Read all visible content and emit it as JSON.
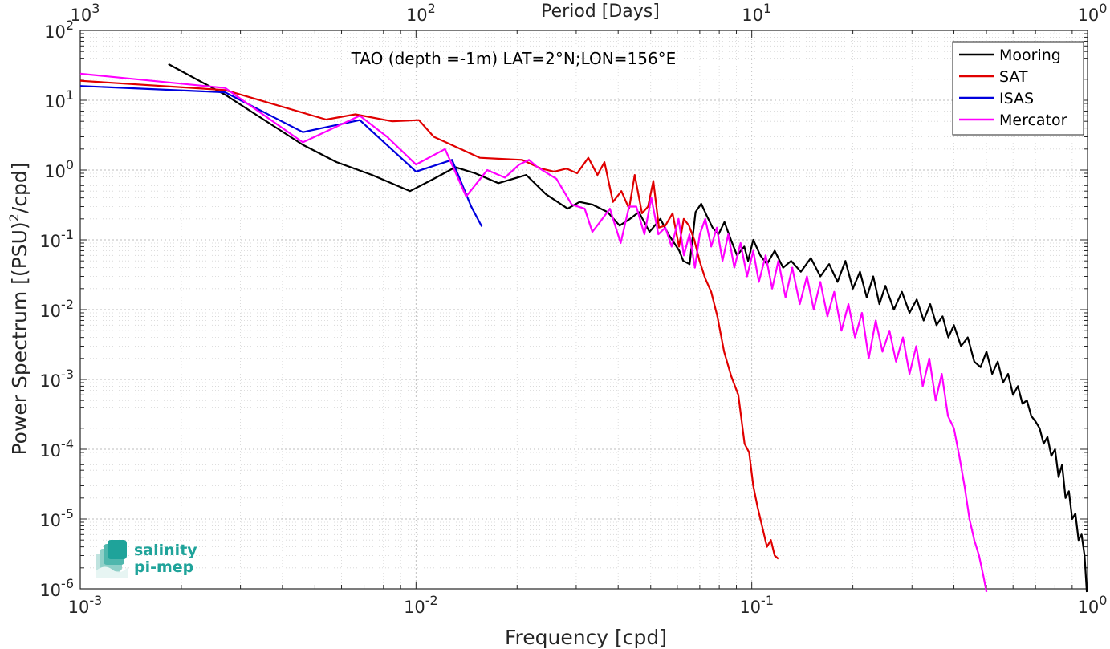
{
  "chart_data": {
    "type": "line",
    "title": "TAO (depth =-1m) LAT=2°N;LON=156°E",
    "xlabel": "Frequency [cpd]",
    "ylabel": "Power Spectrum [(PSU)²/cpd]",
    "top_xlabel": "Period [Days]",
    "x_scale": "log",
    "y_scale": "log",
    "xlim": [
      0.001,
      1
    ],
    "ylim": [
      1e-06,
      100
    ],
    "grid": true,
    "legend_position": "top-right",
    "x_ticks": [
      {
        "value": 0.001,
        "base": "10",
        "exp": "-3"
      },
      {
        "value": 0.01,
        "base": "10",
        "exp": "-2"
      },
      {
        "value": 0.1,
        "base": "10",
        "exp": "-1"
      },
      {
        "value": 1,
        "base": "10",
        "exp": "0"
      }
    ],
    "top_ticks": [
      {
        "value": 0.001,
        "base": "10",
        "exp": "3"
      },
      {
        "value": 0.01,
        "base": "10",
        "exp": "2"
      },
      {
        "value": 0.1,
        "base": "10",
        "exp": "1"
      },
      {
        "value": 1,
        "base": "10",
        "exp": "0"
      }
    ],
    "y_ticks": [
      {
        "value": 100,
        "base": "10",
        "exp": "2"
      },
      {
        "value": 10,
        "base": "10",
        "exp": "1"
      },
      {
        "value": 1,
        "base": "10",
        "exp": "0"
      },
      {
        "value": 0.1,
        "base": "10",
        "exp": "-1"
      },
      {
        "value": 0.01,
        "base": "10",
        "exp": "-2"
      },
      {
        "value": 0.001,
        "base": "10",
        "exp": "-3"
      },
      {
        "value": 0.0001,
        "base": "10",
        "exp": "-4"
      },
      {
        "value": 1e-05,
        "base": "10",
        "exp": "-5"
      },
      {
        "value": 1e-06,
        "base": "10",
        "exp": "-6"
      }
    ],
    "series": [
      {
        "name": "Mooring",
        "color": "#000000",
        "x": [
          0.00183,
          0.0027,
          0.0046,
          0.0058,
          0.0074,
          0.0096,
          0.0113,
          0.0131,
          0.015,
          0.0176,
          0.0213,
          0.0244,
          0.0283,
          0.0307,
          0.0336,
          0.0372,
          0.0404,
          0.0434,
          0.0461,
          0.0496,
          0.0534,
          0.0565,
          0.0608,
          0.0625,
          0.0653,
          0.068,
          0.0707,
          0.0735,
          0.0764,
          0.0796,
          0.0829,
          0.0867,
          0.0904,
          0.095,
          0.0975,
          0.101,
          0.106,
          0.111,
          0.117,
          0.124,
          0.131,
          0.14,
          0.15,
          0.16,
          0.17,
          0.18,
          0.19,
          0.2,
          0.21,
          0.22,
          0.23,
          0.24,
          0.25,
          0.265,
          0.28,
          0.295,
          0.31,
          0.325,
          0.34,
          0.355,
          0.37,
          0.385,
          0.4,
          0.42,
          0.44,
          0.46,
          0.48,
          0.5,
          0.52,
          0.54,
          0.56,
          0.58,
          0.6,
          0.62,
          0.64,
          0.66,
          0.68,
          0.7,
          0.72,
          0.74,
          0.76,
          0.78,
          0.8,
          0.82,
          0.84,
          0.86,
          0.88,
          0.9,
          0.92,
          0.94,
          0.96,
          0.98,
          0.995
        ],
        "y": [
          33,
          12,
          2.3,
          1.3,
          0.85,
          0.5,
          0.75,
          1.1,
          0.9,
          0.65,
          0.85,
          0.45,
          0.28,
          0.35,
          0.32,
          0.25,
          0.16,
          0.2,
          0.25,
          0.13,
          0.2,
          0.12,
          0.07,
          0.05,
          0.045,
          0.25,
          0.33,
          0.22,
          0.15,
          0.12,
          0.18,
          0.1,
          0.06,
          0.08,
          0.05,
          0.1,
          0.06,
          0.045,
          0.07,
          0.04,
          0.05,
          0.035,
          0.055,
          0.03,
          0.045,
          0.025,
          0.05,
          0.02,
          0.035,
          0.015,
          0.03,
          0.012,
          0.022,
          0.01,
          0.018,
          0.009,
          0.014,
          0.007,
          0.012,
          0.006,
          0.008,
          0.004,
          0.006,
          0.003,
          0.004,
          0.0018,
          0.0015,
          0.0025,
          0.0012,
          0.0018,
          0.0009,
          0.0012,
          0.0006,
          0.0008,
          0.00045,
          0.0005,
          0.0003,
          0.00025,
          0.0002,
          0.00012,
          0.00015,
          8e-05,
          0.0001,
          4e-05,
          6e-05,
          2e-05,
          2.5e-05,
          1e-05,
          1.2e-05,
          5e-06,
          6e-06,
          3e-06,
          9e-07
        ]
      },
      {
        "name": "SAT",
        "color": "#e00000",
        "x": [
          0.001,
          0.0027,
          0.0054,
          0.0066,
          0.0085,
          0.0102,
          0.0113,
          0.0133,
          0.0155,
          0.0178,
          0.0207,
          0.0236,
          0.0258,
          0.0281,
          0.0302,
          0.0326,
          0.0347,
          0.0364,
          0.0386,
          0.0409,
          0.0431,
          0.0448,
          0.0471,
          0.0491,
          0.0509,
          0.0529,
          0.0553,
          0.0581,
          0.0607,
          0.0627,
          0.065,
          0.0674,
          0.0699,
          0.0727,
          0.0757,
          0.079,
          0.0827,
          0.0869,
          0.0912,
          0.0952,
          0.0982,
          0.101,
          0.104,
          0.108,
          0.111,
          0.114,
          0.117,
          0.12
        ],
        "y": [
          19,
          14,
          5.3,
          6.3,
          5,
          5.2,
          3,
          2.1,
          1.5,
          1.45,
          1.4,
          1.05,
          0.95,
          1.05,
          0.9,
          1.5,
          0.85,
          1.3,
          0.35,
          0.5,
          0.28,
          0.85,
          0.24,
          0.3,
          0.7,
          0.15,
          0.16,
          0.24,
          0.08,
          0.2,
          0.16,
          0.1,
          0.05,
          0.028,
          0.018,
          0.008,
          0.0025,
          0.0011,
          0.0006,
          0.00012,
          9e-05,
          3e-05,
          1.5e-05,
          7e-06,
          4e-06,
          5e-06,
          3e-06,
          2.7e-06
        ]
      },
      {
        "name": "ISAS",
        "color": "#0000dd",
        "x": [
          0.001,
          0.0027,
          0.0046,
          0.0068,
          0.01,
          0.0128,
          0.0146,
          0.0157
        ],
        "y": [
          16,
          13,
          3.5,
          5.2,
          0.95,
          1.4,
          0.3,
          0.155
        ]
      },
      {
        "name": "Mercator",
        "color": "#ff00ff",
        "x": [
          0.001,
          0.0027,
          0.0046,
          0.0068,
          0.0082,
          0.01,
          0.0122,
          0.0141,
          0.0163,
          0.0184,
          0.0203,
          0.0217,
          0.023,
          0.0262,
          0.0291,
          0.0318,
          0.0335,
          0.0353,
          0.0378,
          0.0407,
          0.0431,
          0.0453,
          0.0479,
          0.0502,
          0.0527,
          0.0553,
          0.0577,
          0.0605,
          0.0628,
          0.0652,
          0.0677,
          0.07,
          0.0727,
          0.0757,
          0.0787,
          0.0818,
          0.0851,
          0.0887,
          0.0926,
          0.0968,
          0.101,
          0.105,
          0.11,
          0.115,
          0.12,
          0.126,
          0.132,
          0.139,
          0.146,
          0.153,
          0.16,
          0.168,
          0.176,
          0.185,
          0.194,
          0.203,
          0.213,
          0.223,
          0.234,
          0.245,
          0.257,
          0.269,
          0.282,
          0.295,
          0.309,
          0.323,
          0.338,
          0.353,
          0.368,
          0.384,
          0.4,
          0.415,
          0.43,
          0.445,
          0.46,
          0.475,
          0.49,
          0.5
        ],
        "y": [
          24,
          15,
          2.5,
          6,
          3,
          1.2,
          2,
          0.42,
          1,
          0.78,
          1.2,
          1.4,
          1.1,
          0.75,
          0.32,
          0.28,
          0.13,
          0.18,
          0.28,
          0.09,
          0.3,
          0.3,
          0.12,
          0.4,
          0.12,
          0.15,
          0.08,
          0.2,
          0.06,
          0.12,
          0.04,
          0.12,
          0.2,
          0.08,
          0.15,
          0.05,
          0.12,
          0.04,
          0.09,
          0.03,
          0.07,
          0.025,
          0.06,
          0.02,
          0.05,
          0.015,
          0.04,
          0.012,
          0.03,
          0.01,
          0.025,
          0.008,
          0.018,
          0.005,
          0.012,
          0.004,
          0.009,
          0.002,
          0.007,
          0.0025,
          0.005,
          0.0018,
          0.004,
          0.0012,
          0.003,
          0.0008,
          0.002,
          0.0005,
          0.0012,
          0.0003,
          0.0002,
          8e-05,
          3e-05,
          1e-05,
          5e-06,
          3e-06,
          1.5e-06,
          9e-07
        ]
      }
    ],
    "legend": [
      "Mooring",
      "SAT",
      "ISAS",
      "Mercator"
    ]
  },
  "logo": {
    "line1": "salinity",
    "line2": "pi-mep",
    "color": "#1fa39a"
  }
}
